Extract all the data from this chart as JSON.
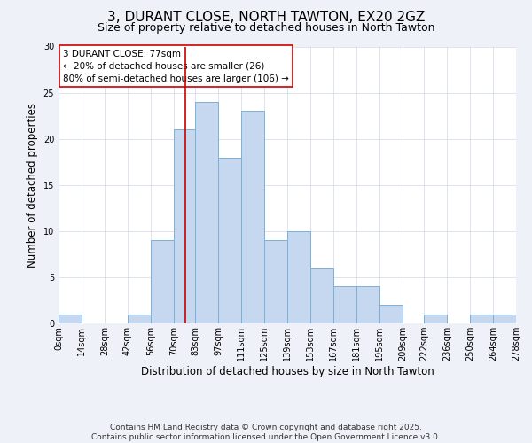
{
  "title": "3, DURANT CLOSE, NORTH TAWTON, EX20 2GZ",
  "subtitle": "Size of property relative to detached houses in North Tawton",
  "xlabel": "Distribution of detached houses by size in North Tawton",
  "ylabel": "Number of detached properties",
  "bar_edges": [
    0,
    14,
    28,
    42,
    56,
    70,
    83,
    97,
    111,
    125,
    139,
    153,
    167,
    181,
    195,
    209,
    222,
    236,
    250,
    264,
    278
  ],
  "bar_heights": [
    1,
    0,
    0,
    1,
    9,
    21,
    24,
    18,
    23,
    9,
    10,
    6,
    4,
    4,
    2,
    0,
    1,
    0,
    1,
    1
  ],
  "bar_color": "#c5d8f0",
  "bar_edgecolor": "#7ab0d8",
  "vline_x": 77,
  "vline_color": "#cc0000",
  "annotation_line1": "3 DURANT CLOSE: 77sqm",
  "annotation_line2": "← 20% of detached houses are smaller (26)",
  "annotation_line3": "80% of semi-detached houses are larger (106) →",
  "box_edgecolor": "#cc0000",
  "tick_labels": [
    "0sqm",
    "14sqm",
    "28sqm",
    "42sqm",
    "56sqm",
    "70sqm",
    "83sqm",
    "97sqm",
    "111sqm",
    "125sqm",
    "139sqm",
    "153sqm",
    "167sqm",
    "181sqm",
    "195sqm",
    "209sqm",
    "222sqm",
    "236sqm",
    "250sqm",
    "264sqm",
    "278sqm"
  ],
  "ylim": [
    0,
    30
  ],
  "yticks": [
    0,
    5,
    10,
    15,
    20,
    25,
    30
  ],
  "footnote": "Contains HM Land Registry data © Crown copyright and database right 2025.\nContains public sector information licensed under the Open Government Licence v3.0.",
  "bg_color": "#eef2f8",
  "plot_bg_color": "#ffffff",
  "title_fontsize": 11,
  "subtitle_fontsize": 9,
  "axis_label_fontsize": 8.5,
  "tick_fontsize": 7,
  "footnote_fontsize": 6.5,
  "annotation_fontsize": 7.5
}
